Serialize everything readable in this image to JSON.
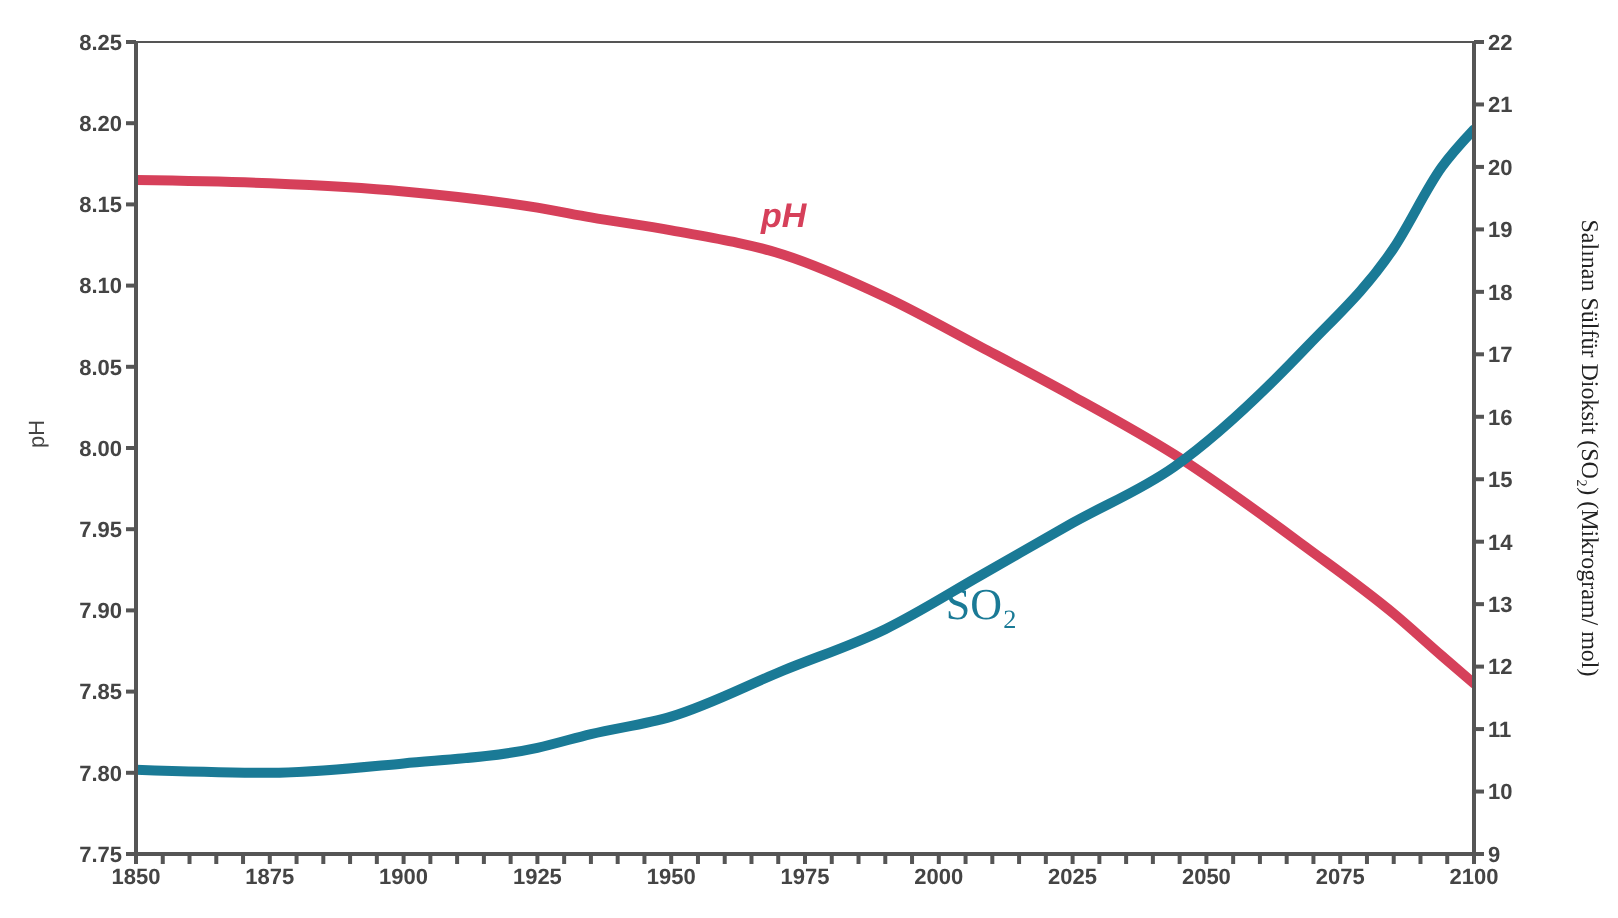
{
  "chart_data": {
    "type": "line",
    "xlabel": null,
    "ylabel": "pH",
    "y2label": "Salınan Sülfür Dioksit (SO₂) (Mikrogram/ mol)",
    "x": [
      1850,
      1875,
      1900,
      1925,
      1935,
      1950,
      1971,
      1990,
      2008,
      2025,
      2044,
      2069,
      2085,
      2094,
      2100
    ],
    "series": [
      {
        "name": "pH",
        "color": "#d6405a",
        "values": [
          8.165,
          8.163,
          8.158,
          8.148,
          8.142,
          8.134,
          8.119,
          8.093,
          8.062,
          8.032,
          7.996,
          7.938,
          7.898,
          7.872,
          7.855
        ]
      },
      {
        "name": "SO₂",
        "color": "#1a7a96",
        "axis": "y2",
        "values": [
          10.35,
          10.3,
          10.45,
          10.7,
          10.92,
          11.2,
          11.94,
          12.6,
          13.47,
          14.3,
          15.2,
          17.14,
          18.7,
          20.0,
          20.6
        ]
      }
    ],
    "xlim": [
      1850,
      2100
    ],
    "xticks": [
      1850,
      {
        "value": 1855,
        "label": null
      },
      {
        "value": 1860,
        "label": null
      },
      {
        "value": 1865,
        "label": null
      },
      {
        "value": 1870,
        "label": null
      },
      1875,
      {
        "value": 1880,
        "label": null
      },
      {
        "value": 1885,
        "label": null
      },
      {
        "value": 1890,
        "label": null
      },
      {
        "value": 1895,
        "label": null
      },
      1900,
      {
        "value": 1905,
        "label": null
      },
      {
        "value": 1910,
        "label": null
      },
      {
        "value": 1915,
        "label": null
      },
      {
        "value": 1920,
        "label": null
      },
      1925,
      {
        "value": 1930,
        "label": null
      },
      {
        "value": 1935,
        "label": null
      },
      {
        "value": 1940,
        "label": null
      },
      {
        "value": 1945,
        "label": null
      },
      1950,
      {
        "value": 1955,
        "label": null
      },
      {
        "value": 1960,
        "label": null
      },
      {
        "value": 1965,
        "label": null
      },
      {
        "value": 1970,
        "label": null
      },
      1975,
      {
        "value": 1980,
        "label": null
      },
      {
        "value": 1985,
        "label": null
      },
      {
        "value": 1990,
        "label": null
      },
      {
        "value": 1995,
        "label": null
      },
      2000,
      {
        "value": 2005,
        "label": null
      },
      {
        "value": 2010,
        "label": null
      },
      {
        "value": 2015,
        "label": null
      },
      {
        "value": 2020,
        "label": null
      },
      2025,
      {
        "value": 2030,
        "label": null
      },
      {
        "value": 2035,
        "label": null
      },
      {
        "value": 2040,
        "label": null
      },
      {
        "value": 2045,
        "label": null
      },
      2050,
      {
        "value": 2055,
        "label": null
      },
      {
        "value": 2060,
        "label": null
      },
      {
        "value": 2065,
        "label": null
      },
      {
        "value": 2070,
        "label": null
      },
      2075,
      {
        "value": 2080,
        "label": null
      },
      {
        "value": 2085,
        "label": null
      },
      {
        "value": 2090,
        "label": null
      },
      {
        "value": 2095,
        "label": null
      },
      2100
    ],
    "ylim": [
      7.75,
      8.25
    ],
    "yticks": [
      {
        "value": 7.75,
        "label": "7.75"
      },
      {
        "value": 7.8,
        "label": "7.80"
      },
      {
        "value": 7.85,
        "label": "7.85"
      },
      {
        "value": 7.9,
        "label": "7.90"
      },
      {
        "value": 7.95,
        "label": "7.95"
      },
      {
        "value": 8.0,
        "label": "8.00"
      },
      {
        "value": 8.05,
        "label": "8.05"
      },
      {
        "value": 8.1,
        "label": "8.10"
      },
      {
        "value": 8.15,
        "label": "8.15"
      },
      {
        "value": 8.2,
        "label": "8.20"
      },
      {
        "value": 8.25,
        "label": "8.25"
      }
    ],
    "y2lim": [
      9,
      22
    ],
    "y2ticks": [
      9,
      10,
      11,
      12,
      13,
      14,
      15,
      16,
      17,
      18,
      19,
      20,
      21,
      22
    ],
    "grid": false,
    "legend": false,
    "marker": "none",
    "line_style": "solid"
  }
}
